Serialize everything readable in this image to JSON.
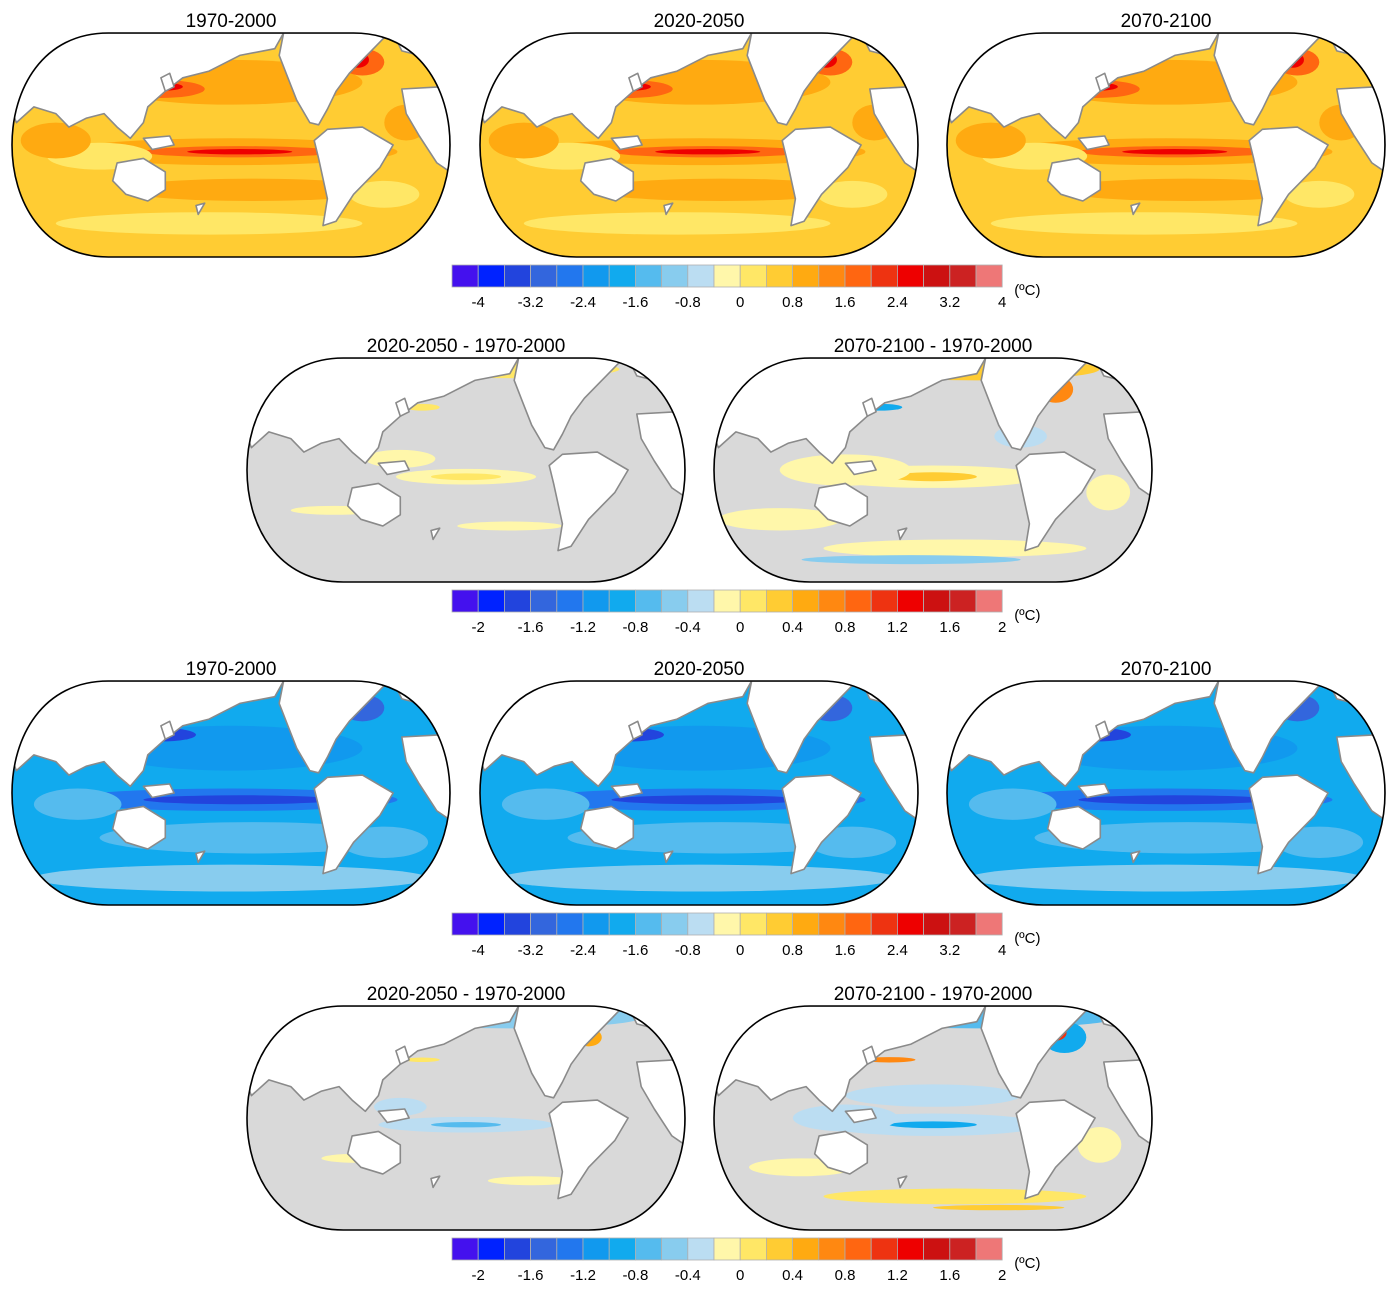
{
  "rows": [
    {
      "maps": [
        {
          "title": "1970-2000",
          "scheme": "warm"
        },
        {
          "title": "2020-2050",
          "scheme": "warm"
        },
        {
          "title": "2070-2100",
          "scheme": "warm"
        }
      ],
      "colorbar": 0
    },
    {
      "maps": [
        {
          "title": "2020-2050 - 1970-2000",
          "scheme": "diff1"
        },
        {
          "title": "2070-2100 - 1970-2000",
          "scheme": "diff2"
        }
      ],
      "colorbar": 1
    },
    {
      "maps": [
        {
          "title": "1970-2000",
          "scheme": "cool"
        },
        {
          "title": "2020-2050",
          "scheme": "cool"
        },
        {
          "title": "2070-2100",
          "scheme": "cool"
        }
      ],
      "colorbar": 0
    },
    {
      "maps": [
        {
          "title": "2020-2050 - 1970-2000",
          "scheme": "diff3"
        },
        {
          "title": "2070-2100 - 1970-2000",
          "scheme": "diff4"
        }
      ],
      "colorbar": 1
    }
  ],
  "colorbars": [
    {
      "ticks": [
        "-4",
        "-3.2",
        "-2.4",
        "-1.6",
        "-0.8",
        "0",
        "0.8",
        "1.6",
        "2.4",
        "3.2",
        "4"
      ],
      "unit": "(ºC)"
    },
    {
      "ticks": [
        "-2",
        "-1.6",
        "-1.2",
        "-0.8",
        "-0.4",
        "0",
        "0.4",
        "0.8",
        "1.2",
        "1.6",
        "2"
      ],
      "unit": "(ºC)"
    }
  ],
  "colors": {
    "palette": [
      "#4411ee",
      "#0022ff",
      "#2244dd",
      "#3366dd",
      "#2277ee",
      "#1199ee",
      "#11aaee",
      "#55bbee",
      "#88ccee",
      "#bbddf2",
      "#fff7aa",
      "#ffe766",
      "#ffcc33",
      "#ffaa11",
      "#ff8811",
      "#ff6611",
      "#ee3311",
      "#ee0000",
      "#cc1111",
      "#cc2222",
      "#ee7777"
    ],
    "land": "#ffffff",
    "coast": "#8a8a8a",
    "insignificant": "#d9d9d9",
    "border": "#000000"
  }
}
